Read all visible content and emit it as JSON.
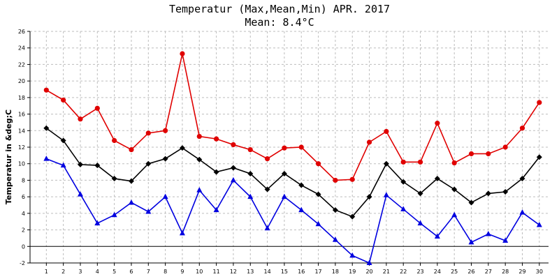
{
  "chart_data": {
    "type": "line",
    "title": "Temperatur (Max,Mean,Min) APR. 2017",
    "subtitle": "Mean: 8.4°C",
    "ylabel": "Temperatur in &deg;C",
    "xlabel": "",
    "categories": [
      "1",
      "2",
      "3",
      "4",
      "5",
      "6",
      "7",
      "8",
      "9",
      "10",
      "11",
      "12",
      "13",
      "14",
      "15",
      "16",
      "17",
      "18",
      "19",
      "20",
      "21",
      "22",
      "23",
      "24",
      "25",
      "26",
      "27",
      "28",
      "29",
      "30"
    ],
    "ylim": [
      -2,
      26
    ],
    "yticks": [
      "-2",
      "0",
      "2",
      "4",
      "6",
      "8",
      "10",
      "12",
      "14",
      "16",
      "18",
      "20",
      "22",
      "24",
      "26"
    ],
    "grid": true,
    "series": [
      {
        "color": "#e00000",
        "marker": "circle",
        "values": [
          18.9,
          17.7,
          15.4,
          16.7,
          12.8,
          11.7,
          13.7,
          14.0,
          23.3,
          13.3,
          13.0,
          12.3,
          11.7,
          10.6,
          11.9,
          12.0,
          10.0,
          8.0,
          8.1,
          12.6,
          13.9,
          10.2,
          10.2,
          14.9,
          10.1,
          11.2,
          11.2,
          12.0,
          14.3,
          17.4
        ]
      },
      {
        "color": "#000000",
        "marker": "diamond",
        "values": [
          14.3,
          12.8,
          9.9,
          9.8,
          8.2,
          7.9,
          10.0,
          10.6,
          11.9,
          10.5,
          9.0,
          9.5,
          8.8,
          6.9,
          8.8,
          7.4,
          6.3,
          4.4,
          3.6,
          6.0,
          10.0,
          7.8,
          6.4,
          8.2,
          6.9,
          5.3,
          6.4,
          6.6,
          8.2,
          10.8
        ]
      },
      {
        "color": "#0000e0",
        "marker": "triangle",
        "values": [
          10.6,
          9.8,
          6.3,
          2.8,
          3.8,
          5.3,
          4.2,
          6.0,
          1.6,
          6.8,
          4.4,
          8.0,
          6.0,
          2.2,
          6.0,
          4.4,
          2.7,
          0.8,
          -1.1,
          -2.0,
          6.2,
          4.5,
          2.8,
          1.2,
          3.8,
          0.5,
          1.5,
          0.7,
          4.1,
          2.6
        ]
      }
    ]
  }
}
